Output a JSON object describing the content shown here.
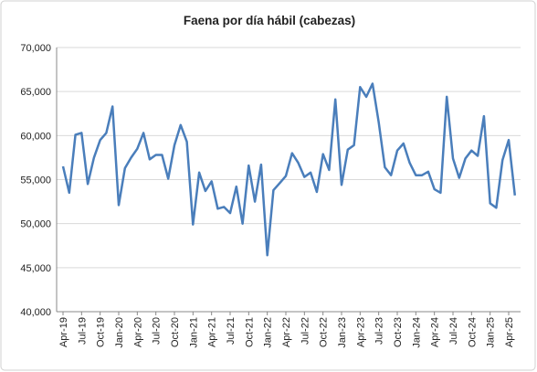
{
  "chart_data": {
    "type": "line",
    "title": "Faena por día hábil (cabezas)",
    "categories": [
      "Apr-19",
      null,
      null,
      "Jul-19",
      null,
      null,
      "Oct-19",
      null,
      null,
      "Jan-20",
      null,
      null,
      "Apr-20",
      null,
      null,
      "Jul-20",
      null,
      null,
      "Oct-20",
      null,
      null,
      "Jan-21",
      null,
      null,
      "Apr-21",
      null,
      null,
      "Jul-21",
      null,
      null,
      "Oct-21",
      null,
      null,
      "Jan-22",
      null,
      null,
      "Apr-22",
      null,
      null,
      "Jul-22",
      null,
      null,
      "Oct-22",
      null,
      null,
      "Jan-23",
      null,
      null,
      "Apr-23",
      null,
      null,
      "Jul-23",
      null,
      null,
      "Oct-23",
      null,
      null,
      "Jan-24",
      null,
      null,
      "Apr-24",
      null,
      null,
      "Jul-24",
      null,
      null,
      "Oct-24",
      null,
      null,
      "Jan-25",
      null,
      null,
      "Apr-25",
      null
    ],
    "series": [
      {
        "color": "#4a7ebb",
        "values": [
          56500,
          53500,
          60100,
          60300,
          54500,
          57500,
          59500,
          60300,
          63300,
          52100,
          56300,
          57500,
          58500,
          60300,
          57300,
          57800,
          57800,
          55100,
          58900,
          61200,
          59300,
          49900,
          55800,
          53700,
          54800,
          51700,
          51900,
          51200,
          54200,
          50000,
          56600,
          52500,
          56700,
          46400,
          53800,
          54600,
          55400,
          58000,
          56900,
          55300,
          55800,
          53600,
          57900,
          56100,
          64100,
          54400,
          58400,
          58900,
          65500,
          64400,
          65900,
          61500,
          56400,
          55500,
          58300,
          59100,
          56900,
          55500,
          55500,
          55900,
          53900,
          53500,
          64400,
          57400,
          55200,
          57400,
          58300,
          57700,
          62200,
          52300,
          51800,
          57200,
          59500,
          53200
        ]
      }
    ],
    "ylim": [
      40000,
      70000
    ],
    "yticks": [
      {
        "value": 40000,
        "label": "40,000"
      },
      {
        "value": 45000,
        "label": "45,000"
      },
      {
        "value": 50000,
        "label": "50,000"
      },
      {
        "value": 55000,
        "label": "55,000"
      },
      {
        "value": 60000,
        "label": "60,000"
      },
      {
        "value": 65000,
        "label": "65,000"
      },
      {
        "value": 70000,
        "label": "70,000"
      }
    ],
    "grid": true
  }
}
